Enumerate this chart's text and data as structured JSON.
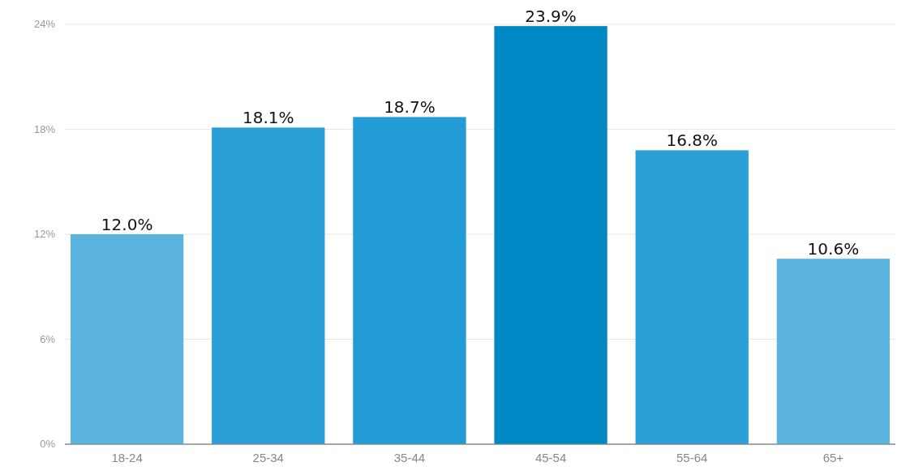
{
  "chart_data": {
    "type": "bar",
    "categories": [
      "18-24",
      "25-34",
      "35-44",
      "45-54",
      "55-64",
      "65+"
    ],
    "values": [
      12.0,
      18.1,
      18.7,
      23.9,
      16.8,
      10.6
    ],
    "colors": [
      "#5ab4de",
      "#2a9fd6",
      "#229cd4",
      "#0088c4",
      "#2aa0d6",
      "#5ab4de"
    ],
    "value_labels": [
      "12.0%",
      "18.1%",
      "18.7%",
      "23.9%",
      "16.8%",
      "10.6%"
    ],
    "ylim": [
      0,
      24
    ],
    "yticks": [
      {
        "value": 0,
        "label": "0%"
      },
      {
        "value": 6,
        "label": "6%"
      },
      {
        "value": 12,
        "label": "12%"
      },
      {
        "value": 18,
        "label": "18%"
      },
      {
        "value": 24,
        "label": "24%"
      }
    ],
    "grid": "y"
  }
}
